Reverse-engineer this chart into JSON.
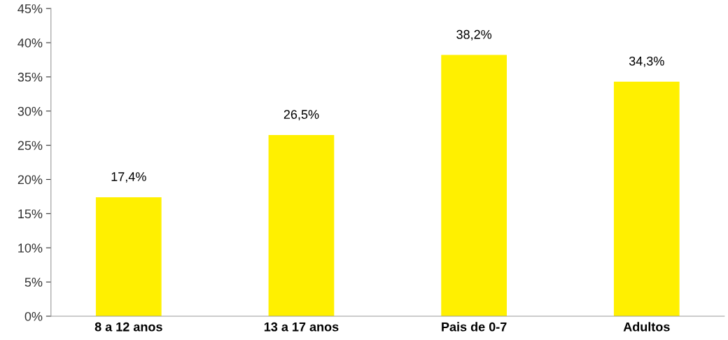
{
  "chart_data": {
    "type": "bar",
    "categories": [
      "8 a 12 anos",
      "13 a 17 anos",
      "Pais de 0-7",
      "Adultos"
    ],
    "values": [
      17.4,
      26.5,
      38.2,
      34.3
    ],
    "value_labels": [
      "17,4%",
      "26,5%",
      "38,2%",
      "34,3%"
    ],
    "color": "#fff000",
    "ylim": [
      0,
      45
    ],
    "yticks": [
      {
        "value": 0,
        "label": "0%"
      },
      {
        "value": 5,
        "label": "5%"
      },
      {
        "value": 10,
        "label": "10%"
      },
      {
        "value": 15,
        "label": "15%"
      },
      {
        "value": 20,
        "label": "20%"
      },
      {
        "value": 25,
        "label": "25%"
      },
      {
        "value": 30,
        "label": "30%"
      },
      {
        "value": 35,
        "label": "35%"
      },
      {
        "value": 40,
        "label": "40%"
      },
      {
        "value": 45,
        "label": "45%"
      }
    ],
    "grid": false,
    "legend": false
  }
}
